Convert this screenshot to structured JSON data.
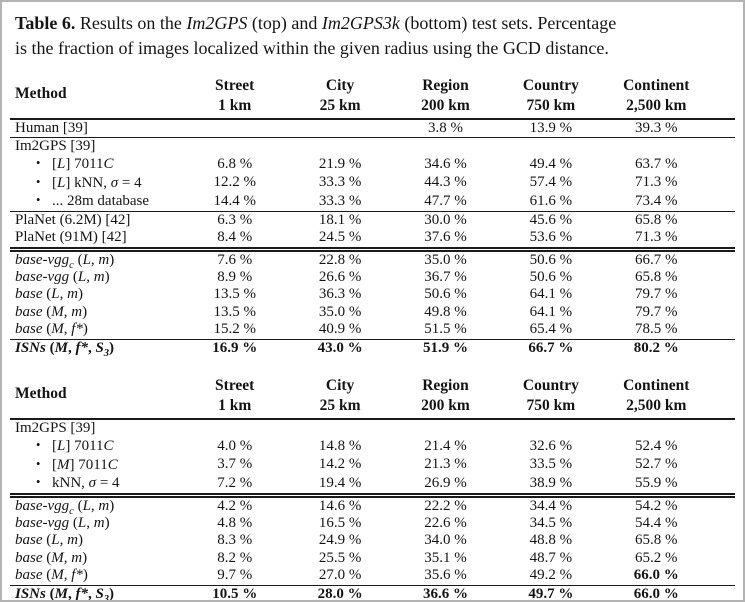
{
  "icons": {
    "bullet": "•"
  },
  "colors": {
    "text": "#141414",
    "rule": "#1a1a1a",
    "page_border": "#b3b3b3"
  },
  "caption": {
    "label": "Table 6.",
    "line1_pre": " Results on the ",
    "dataset1": "Im2GPS",
    "line1_mid": " (top) and ",
    "dataset2": "Im2GPS3k",
    "line1_post": " (bottom) test sets. Percentage",
    "line2": "is the fraction of images localized within the given radius using the GCD distance."
  },
  "tables": [
    {
      "name": "im2gps-test-set",
      "header": {
        "method": "Method",
        "columns": [
          {
            "name": "Street",
            "radius": "1 km"
          },
          {
            "name": "City",
            "radius": "25 km"
          },
          {
            "name": "Region",
            "radius": "200 km"
          },
          {
            "name": "Country",
            "radius": "750 km"
          },
          {
            "name": "Continent",
            "radius": "2,500 km"
          }
        ]
      },
      "rows": [
        {
          "label": [
            {
              "t": "Human [39]"
            }
          ],
          "values": [
            "",
            "",
            "3.8 %",
            "13.9 %",
            "39.3 %"
          ],
          "rule_after": "single"
        },
        {
          "label": [
            {
              "t": "Im2GPS [39]"
            }
          ],
          "values": [
            "",
            "",
            "",
            "",
            ""
          ],
          "rule_after": ""
        },
        {
          "bullet": true,
          "label": [
            {
              "t": "["
            },
            {
              "t": "L",
              "i": 1
            },
            {
              "t": "] 7011"
            },
            {
              "t": "C",
              "i": 1
            }
          ],
          "values": [
            "6.8 %",
            "21.9 %",
            "34.6 %",
            "49.4 %",
            "63.7 %"
          ],
          "rule_after": ""
        },
        {
          "bullet": true,
          "label": [
            {
              "t": "["
            },
            {
              "t": "L",
              "i": 1
            },
            {
              "t": "] kNN, "
            },
            {
              "t": "σ",
              "i": 1
            },
            {
              "t": " = 4"
            }
          ],
          "values": [
            "12.2 %",
            "33.3 %",
            "44.3 %",
            "57.4 %",
            "71.3 %"
          ],
          "rule_after": ""
        },
        {
          "bullet": true,
          "label": [
            {
              "t": "... 28m database"
            }
          ],
          "values": [
            "14.4 %",
            "33.3 %",
            "47.7 %",
            "61.6 %",
            "73.4 %"
          ],
          "rule_after": "single"
        },
        {
          "label": [
            {
              "t": "PlaNet (6.2M) [42]"
            }
          ],
          "values": [
            "6.3 %",
            "18.1 %",
            "30.0 %",
            "45.6 %",
            "65.8 %"
          ],
          "rule_after": ""
        },
        {
          "label": [
            {
              "t": "PlaNet (91M) [42]"
            }
          ],
          "values": [
            "8.4 %",
            "24.5 %",
            "37.6 %",
            "53.6 %",
            "71.3 %"
          ],
          "rule_after": "double"
        },
        {
          "label": [
            {
              "t": "base-vgg",
              "i": 1
            },
            {
              "t": "c",
              "i": 1,
              "sub": 1
            },
            {
              "t": " ("
            },
            {
              "t": "L",
              "i": 1
            },
            {
              "t": ", "
            },
            {
              "t": "m",
              "i": 1
            },
            {
              "t": ")"
            }
          ],
          "values": [
            "7.6 %",
            "22.8 %",
            "35.0 %",
            "50.6 %",
            "66.7 %"
          ],
          "rule_after": ""
        },
        {
          "label": [
            {
              "t": "base-vgg",
              "i": 1
            },
            {
              "t": " ("
            },
            {
              "t": "L",
              "i": 1
            },
            {
              "t": ", "
            },
            {
              "t": "m",
              "i": 1
            },
            {
              "t": ")"
            }
          ],
          "values": [
            "8.9 %",
            "26.6 %",
            "36.7 %",
            "50.6 %",
            "65.8 %"
          ],
          "rule_after": ""
        },
        {
          "label": [
            {
              "t": "base",
              "i": 1
            },
            {
              "t": " ("
            },
            {
              "t": "L",
              "i": 1
            },
            {
              "t": ", "
            },
            {
              "t": "m",
              "i": 1
            },
            {
              "t": ")"
            }
          ],
          "values": [
            "13.5 %",
            "36.3 %",
            "50.6 %",
            "64.1 %",
            "79.7 %"
          ],
          "rule_after": ""
        },
        {
          "label": [
            {
              "t": "base",
              "i": 1
            },
            {
              "t": " ("
            },
            {
              "t": "M",
              "i": 1
            },
            {
              "t": ", "
            },
            {
              "t": "m",
              "i": 1
            },
            {
              "t": ")"
            }
          ],
          "values": [
            "13.5 %",
            "35.0 %",
            "49.8 %",
            "64.1 %",
            "79.7 %"
          ],
          "rule_after": ""
        },
        {
          "label": [
            {
              "t": "base",
              "i": 1
            },
            {
              "t": " ("
            },
            {
              "t": "M",
              "i": 1
            },
            {
              "t": ", "
            },
            {
              "t": "f*",
              "i": 1
            },
            {
              "t": ")"
            }
          ],
          "values": [
            "15.2 %",
            "40.9 %",
            "51.5 %",
            "65.4 %",
            "78.5 %"
          ],
          "rule_after": "single"
        },
        {
          "bold": true,
          "label": [
            {
              "t": "ISNs",
              "i": 1
            },
            {
              "t": " ("
            },
            {
              "t": "M",
              "i": 1
            },
            {
              "t": ", "
            },
            {
              "t": "f*",
              "i": 1
            },
            {
              "t": ", "
            },
            {
              "t": "S",
              "i": 1
            },
            {
              "t": "3",
              "i": 1,
              "sub": 1
            },
            {
              "t": ")"
            }
          ],
          "values": [
            "16.9 %",
            "43.0 %",
            "51.9 %",
            "66.7 %",
            "80.2 %"
          ],
          "rule_after": ""
        }
      ]
    },
    {
      "name": "im2gps3k-test-set",
      "header": {
        "method": "Method",
        "columns": [
          {
            "name": "Street",
            "radius": "1 km"
          },
          {
            "name": "City",
            "radius": "25 km"
          },
          {
            "name": "Region",
            "radius": "200 km"
          },
          {
            "name": "Country",
            "radius": "750 km"
          },
          {
            "name": "Continent",
            "radius": "2,500 km"
          }
        ]
      },
      "rows": [
        {
          "label": [
            {
              "t": "Im2GPS [39]"
            }
          ],
          "values": [
            "",
            "",
            "",
            "",
            ""
          ],
          "rule_after": ""
        },
        {
          "bullet": true,
          "label": [
            {
              "t": "["
            },
            {
              "t": "L",
              "i": 1
            },
            {
              "t": "] 7011"
            },
            {
              "t": "C",
              "i": 1
            }
          ],
          "values": [
            "4.0 %",
            "14.8 %",
            "21.4 %",
            "32.6 %",
            "52.4 %"
          ],
          "rule_after": ""
        },
        {
          "bullet": true,
          "label": [
            {
              "t": "["
            },
            {
              "t": "M",
              "i": 1
            },
            {
              "t": "] 7011"
            },
            {
              "t": "C",
              "i": 1
            }
          ],
          "values": [
            "3.7 %",
            "14.2 %",
            "21.3 %",
            "33.5 %",
            "52.7 %"
          ],
          "rule_after": ""
        },
        {
          "bullet": true,
          "label": [
            {
              "t": "kNN, "
            },
            {
              "t": "σ",
              "i": 1
            },
            {
              "t": " = 4"
            }
          ],
          "values": [
            "7.2 %",
            "19.4 %",
            "26.9 %",
            "38.9 %",
            "55.9 %"
          ],
          "rule_after": "double"
        },
        {
          "label": [
            {
              "t": "base-vgg",
              "i": 1
            },
            {
              "t": "c",
              "i": 1,
              "sub": 1
            },
            {
              "t": " ("
            },
            {
              "t": "L",
              "i": 1
            },
            {
              "t": ", "
            },
            {
              "t": "m",
              "i": 1
            },
            {
              "t": ")"
            }
          ],
          "values": [
            "4.2 %",
            "14.6 %",
            "22.2 %",
            "34.4 %",
            "54.2 %"
          ],
          "rule_after": ""
        },
        {
          "label": [
            {
              "t": "base-vgg",
              "i": 1
            },
            {
              "t": " ("
            },
            {
              "t": "L",
              "i": 1
            },
            {
              "t": ", "
            },
            {
              "t": "m",
              "i": 1
            },
            {
              "t": ")"
            }
          ],
          "values": [
            "4.8 %",
            "16.5 %",
            "22.6 %",
            "34.5 %",
            "54.4 %"
          ],
          "rule_after": ""
        },
        {
          "label": [
            {
              "t": "base",
              "i": 1
            },
            {
              "t": " ("
            },
            {
              "t": "L",
              "i": 1
            },
            {
              "t": ", "
            },
            {
              "t": "m",
              "i": 1
            },
            {
              "t": ")"
            }
          ],
          "values": [
            "8.3 %",
            "24.9 %",
            "34.0 %",
            "48.8 %",
            "65.8 %"
          ],
          "rule_after": ""
        },
        {
          "label": [
            {
              "t": "base",
              "i": 1
            },
            {
              "t": " ("
            },
            {
              "t": "M",
              "i": 1
            },
            {
              "t": ", "
            },
            {
              "t": "m",
              "i": 1
            },
            {
              "t": ")"
            }
          ],
          "values": [
            "8.2 %",
            "25.5 %",
            "35.1 %",
            "48.7 %",
            "65.2 %"
          ],
          "rule_after": ""
        },
        {
          "label": [
            {
              "t": "base",
              "i": 1
            },
            {
              "t": " ("
            },
            {
              "t": "M",
              "i": 1
            },
            {
              "t": ", "
            },
            {
              "t": "f*",
              "i": 1
            },
            {
              "t": ")"
            }
          ],
          "values": [
            "9.7 %",
            "27.0 %",
            "35.6 %",
            "49.2 %",
            "66.0 %"
          ],
          "bold_values": [
            4
          ],
          "rule_after": "single"
        },
        {
          "bold": true,
          "label": [
            {
              "t": "ISNs",
              "i": 1
            },
            {
              "t": " ("
            },
            {
              "t": "M",
              "i": 1
            },
            {
              "t": ", "
            },
            {
              "t": "f*",
              "i": 1
            },
            {
              "t": ", "
            },
            {
              "t": "S",
              "i": 1
            },
            {
              "t": "3",
              "i": 1,
              "sub": 1
            },
            {
              "t": ")"
            }
          ],
          "values": [
            "10.5 %",
            "28.0 %",
            "36.6 %",
            "49.7 %",
            "66.0 %"
          ],
          "rule_after": ""
        }
      ]
    }
  ]
}
